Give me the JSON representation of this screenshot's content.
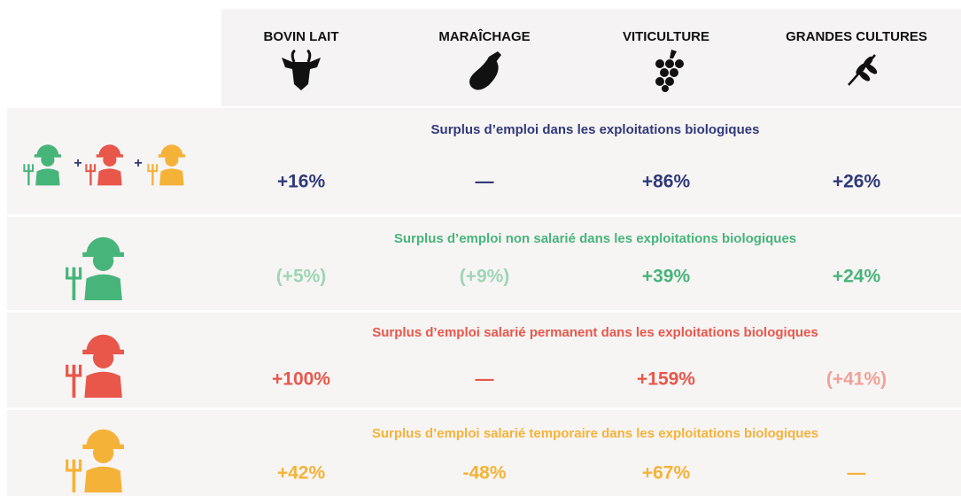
{
  "columns": [
    "BOVIN LAIT",
    "MARAÎCHAGE",
    "VITICULTURE",
    "GRANDES CULTURES"
  ],
  "rows": [
    {
      "title": "Surplus d’emploi dans les exploitations biologiques",
      "color": "#2f3a7a",
      "muted_color": "#8e95c0",
      "values": [
        "+16%",
        "—",
        "+86%",
        "+26%"
      ]
    },
    {
      "title": "Surplus d’emploi non salarié dans les exploitations biologiques",
      "color": "#47b57a",
      "muted_color": "#9fd5b5",
      "values": [
        "(+5%)",
        "(+9%)",
        "+39%",
        "+24%"
      ]
    },
    {
      "title": "Surplus d’emploi salarié permanent dans les exploitations biologiques",
      "color": "#e8574a",
      "muted_color": "#f0a198",
      "values": [
        "+100%",
        "—",
        "+159%",
        "(+41%)"
      ]
    },
    {
      "title": "Surplus d’emploi salarié temporaire dans les exploitations biologiques",
      "color": "#f4b338",
      "muted_color": "#f8d48f",
      "values": [
        "+42%",
        "-48%",
        "+67%",
        "—"
      ]
    }
  ]
}
